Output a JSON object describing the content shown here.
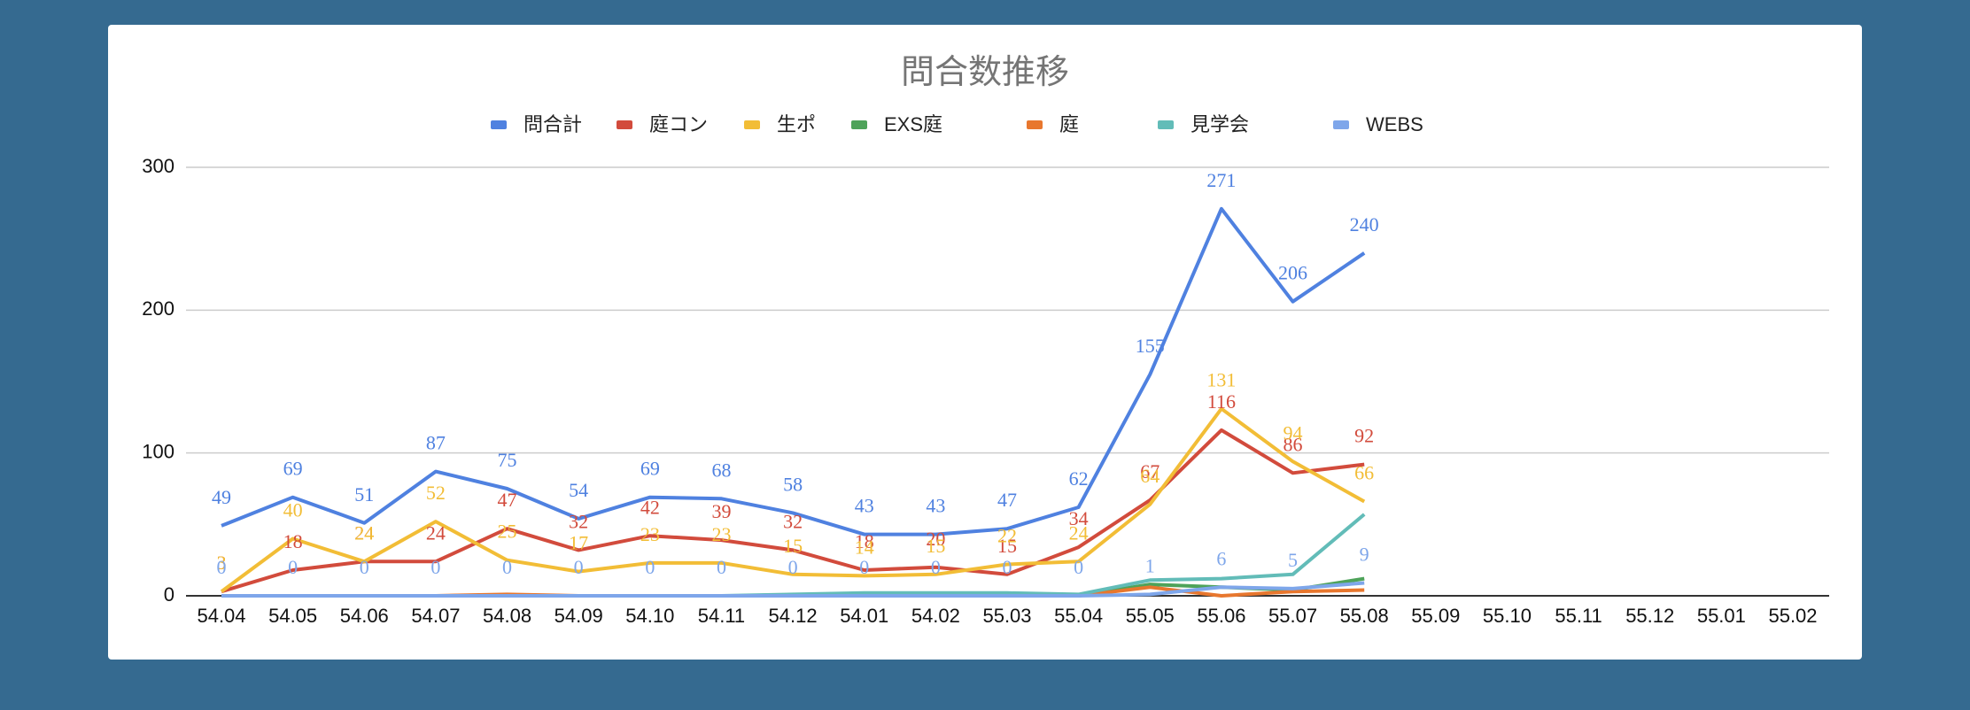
{
  "chart_data": {
    "type": "line",
    "title": "問合数推移",
    "categories": [
      "54.04",
      "54.05",
      "54.06",
      "54.07",
      "54.08",
      "54.09",
      "54.10",
      "54.11",
      "54.12",
      "54.01",
      "54.02",
      "55.03",
      "55.04",
      "55.05",
      "55.06",
      "55.07",
      "55.08",
      "55.09",
      "55.10",
      "55.11",
      "55.12",
      "55.01",
      "55.02"
    ],
    "series": [
      {
        "name": "問合計",
        "color": "#4f81e0",
        "data_labels": true,
        "values": [
          49,
          69,
          51,
          87,
          75,
          54,
          69,
          68,
          58,
          43,
          43,
          47,
          62,
          155,
          271,
          206,
          240,
          null,
          null,
          null,
          null,
          null,
          null
        ]
      },
      {
        "name": "庭コン",
        "color": "#d24b3c",
        "data_labels": true,
        "values": [
          3,
          18,
          24,
          24,
          47,
          32,
          42,
          39,
          32,
          18,
          20,
          15,
          34,
          67,
          116,
          86,
          92,
          null,
          null,
          null,
          null,
          null,
          null
        ]
      },
      {
        "name": "生ポ",
        "color": "#f2bd36",
        "data_labels": true,
        "values": [
          3,
          40,
          24,
          52,
          25,
          17,
          23,
          23,
          15,
          14,
          15,
          22,
          24,
          64,
          131,
          94,
          66,
          null,
          null,
          null,
          null,
          null,
          null
        ]
      },
      {
        "name": "EXS庭",
        "color": "#4ea35a",
        "data_labels": false,
        "values": [
          0,
          0,
          0,
          0,
          0,
          0,
          0,
          0,
          0,
          0,
          0,
          0,
          0,
          8,
          6,
          4,
          12,
          null,
          null,
          null,
          null,
          null,
          null
        ]
      },
      {
        "name": "庭",
        "color": "#e8772e",
        "data_labels": false,
        "values": [
          0,
          0,
          0,
          0,
          1,
          0,
          0,
          0,
          0,
          0,
          0,
          0,
          0,
          6,
          0,
          3,
          4,
          null,
          null,
          null,
          null,
          null,
          null
        ]
      },
      {
        "name": "見学会",
        "color": "#62bcb8",
        "data_labels": false,
        "values": [
          0,
          0,
          0,
          0,
          0,
          0,
          0,
          0,
          1,
          2,
          2,
          2,
          1,
          11,
          12,
          15,
          57,
          null,
          null,
          null,
          null,
          null,
          null
        ]
      },
      {
        "name": "WEBS",
        "color": "#7ea6ea",
        "data_labels": true,
        "values": [
          0,
          0,
          0,
          0,
          0,
          0,
          0,
          0,
          0,
          0,
          0,
          0,
          0,
          1,
          6,
          5,
          9,
          null,
          null,
          null,
          null,
          null,
          null
        ]
      }
    ],
    "ylim": [
      0,
      300
    ],
    "yticks": [
      0,
      100,
      200,
      300
    ],
    "grid": true,
    "legend": "top"
  }
}
